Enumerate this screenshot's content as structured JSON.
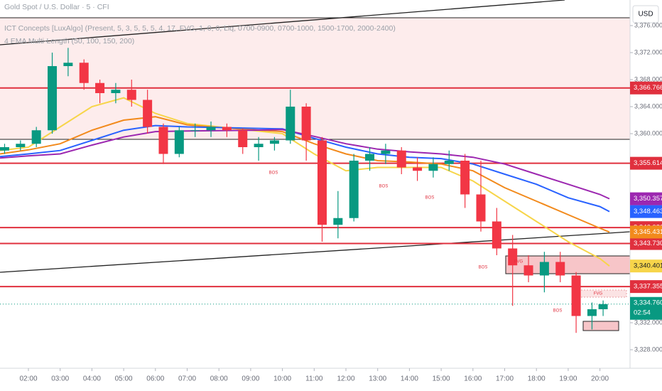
{
  "chart_data": {
    "type": "candlestick",
    "title": "Gold Spot / U.S. Dollar · 5 · CFI",
    "subtitles": [
      "ICT Concepts [LuxAlgo] (Present, 5, 3, 5, 5, 5, 4, 17, FVG, 1, 0, 0, Liq, 0700-0900, 0700-1000, 1500-1700, 2000-2400)",
      "4 EMA Multi-Length (50, 100, 150, 200)"
    ],
    "currency": "USD",
    "up_color": "#089981",
    "down_color": "#f23645",
    "xlim": [
      1.105,
      20.948
    ],
    "ylim": [
      3325.05,
      3379.79
    ],
    "xticks": [
      {
        "value": 2,
        "label": "02:00"
      },
      {
        "value": 3,
        "label": "03:00"
      },
      {
        "value": 4,
        "label": "04:00"
      },
      {
        "value": 5,
        "label": "05:00"
      },
      {
        "value": 6,
        "label": "06:00"
      },
      {
        "value": 7,
        "label": "07:00"
      },
      {
        "value": 8,
        "label": "08:00"
      },
      {
        "value": 9,
        "label": "09:00"
      },
      {
        "value": 10,
        "label": "10:00"
      },
      {
        "value": 11,
        "label": "11:00"
      },
      {
        "value": 12,
        "label": "12:00"
      },
      {
        "value": 13,
        "label": "13:00"
      },
      {
        "value": 14,
        "label": "14:00"
      },
      {
        "value": 15,
        "label": "15:00"
      },
      {
        "value": 16,
        "label": "16:00"
      },
      {
        "value": 17,
        "label": "17:00"
      },
      {
        "value": 18,
        "label": "18:00"
      },
      {
        "value": 19,
        "label": "19:00"
      },
      {
        "value": 20,
        "label": "20:00"
      }
    ],
    "yticks": [
      {
        "value": 3376,
        "label": "3,376.000"
      },
      {
        "value": 3372,
        "label": "3,372.000"
      },
      {
        "value": 3368,
        "label": "3,368.000"
      },
      {
        "value": 3364,
        "label": "3,364.000"
      },
      {
        "value": 3360,
        "label": "3,360.000"
      },
      {
        "value": 3332,
        "label": "3,332.000"
      },
      {
        "value": 3328,
        "label": "3,328.000"
      }
    ],
    "candles": {
      "x": [
        1.25,
        1.75,
        2.25,
        2.75,
        3.25,
        3.75,
        4.25,
        4.75,
        5.25,
        5.75,
        6.25,
        6.75,
        7.25,
        7.75,
        8.25,
        8.75,
        9.25,
        9.75,
        10.25,
        10.75,
        11.25,
        11.75,
        12.25,
        12.75,
        13.25,
        13.75,
        14.25,
        14.75,
        15.25,
        15.75,
        16.25,
        16.75,
        17.25,
        17.75,
        18.25,
        18.75,
        19.25,
        19.75,
        20.1
      ],
      "open": [
        3357.5,
        3358,
        3358.5,
        3360.5,
        3370,
        3370.5,
        3367.5,
        3366,
        3366.5,
        3365,
        3361,
        3357,
        3360.5,
        3360.5,
        3361,
        3360.5,
        3358,
        3358.5,
        3359,
        3364,
        3359,
        3346.5,
        3347.5,
        3356,
        3357,
        3357.5,
        3355,
        3354.5,
        3355.5,
        3356,
        3351,
        3347,
        3343,
        3340.5,
        3339,
        3341,
        3339,
        3333,
        3334
      ],
      "high": [
        3358.5,
        3359,
        3361,
        3372,
        3372.7,
        3371,
        3368,
        3367.5,
        3368,
        3366.5,
        3361.5,
        3361,
        3361.5,
        3361.8,
        3361.5,
        3360.8,
        3359.5,
        3359.5,
        3366.5,
        3364.5,
        3359.5,
        3351.5,
        3357,
        3358,
        3358.5,
        3358,
        3356.5,
        3356.5,
        3357.5,
        3357,
        3356,
        3349,
        3345,
        3342,
        3342.5,
        3342.5,
        3339.5,
        3335,
        3335.3
      ],
      "low": [
        3357,
        3357.5,
        3358,
        3360,
        3368.5,
        3366.5,
        3364.5,
        3364.5,
        3364,
        3360,
        3355.5,
        3356.5,
        3359.5,
        3359.5,
        3359.5,
        3357,
        3356,
        3357.5,
        3358.5,
        3356,
        3344,
        3344.5,
        3347,
        3354.5,
        3355.5,
        3354,
        3353,
        3353.5,
        3354.5,
        3349,
        3345.5,
        3342,
        3334.5,
        3338,
        3336.5,
        3338,
        3330.5,
        3331,
        3333
      ],
      "close": [
        3358,
        3358.5,
        3360.5,
        3370,
        3370.5,
        3367.5,
        3366,
        3366.5,
        3365,
        3361,
        3357,
        3360.5,
        3360.5,
        3361,
        3360.5,
        3358,
        3358.5,
        3359,
        3364,
        3359,
        3346.5,
        3347.5,
        3356,
        3357,
        3357.5,
        3355,
        3354.5,
        3355.5,
        3356,
        3351,
        3347,
        3343,
        3340.5,
        3339,
        3341,
        3339,
        3333,
        3334,
        3334.76
      ]
    },
    "emas": [
      {
        "color": "#f7d54a",
        "x": [
          1.105,
          2,
          3,
          4,
          5,
          6,
          7,
          8,
          9,
          10,
          11,
          12,
          13,
          14,
          15,
          16,
          17,
          18,
          19,
          20,
          20.3
        ],
        "values": [
          3357.5,
          3358,
          3361,
          3364,
          3365.3,
          3363,
          3361.5,
          3361,
          3360.5,
          3360,
          3357,
          3354.5,
          3355,
          3355,
          3355,
          3353,
          3350,
          3347,
          3344,
          3341.5,
          3340.401
        ],
        "last_label": "3,340.401"
      },
      {
        "color": "#f28a1c",
        "x": [
          1.105,
          2,
          3,
          4,
          5,
          6,
          7,
          8,
          9,
          10,
          11,
          12,
          13,
          14,
          15,
          16,
          17,
          18,
          19,
          20,
          20.3
        ],
        "values": [
          3357,
          3357.6,
          3358.5,
          3360.5,
          3362,
          3362.5,
          3361.3,
          3360.9,
          3360.6,
          3360.3,
          3358.5,
          3357,
          3356,
          3355.8,
          3355.5,
          3354.5,
          3352,
          3350,
          3348,
          3346,
          3345.431
        ],
        "last_label": "3,345.431"
      },
      {
        "color": "#2962ff",
        "x": [
          1.105,
          2,
          3,
          4,
          5,
          6,
          7,
          8,
          9,
          10,
          11,
          12,
          13,
          14,
          15,
          16,
          17,
          18,
          19,
          20,
          20.3
        ],
        "values": [
          3356.6,
          3357,
          3357.5,
          3359,
          3360.5,
          3361.2,
          3361,
          3360.9,
          3360.8,
          3360.7,
          3359.3,
          3358,
          3357,
          3356.5,
          3356.3,
          3355.5,
          3354,
          3352.5,
          3350.5,
          3349.2,
          3348.463
        ],
        "last_label": "3,348.463"
      },
      {
        "color": "#9c27b0",
        "x": [
          1.105,
          2,
          3,
          4,
          5,
          6,
          7,
          8,
          9,
          10,
          11,
          12,
          13,
          14,
          15,
          16,
          17,
          18,
          19,
          20,
          20.3
        ],
        "values": [
          3356.4,
          3356.7,
          3357,
          3358.3,
          3359.5,
          3360.3,
          3360.4,
          3360.45,
          3360.5,
          3360.6,
          3359.6,
          3358.5,
          3357.7,
          3357.3,
          3357,
          3356.5,
          3355.5,
          3354,
          3352.5,
          3351,
          3350.357
        ],
        "last_label": "3,350.357"
      }
    ],
    "levels": [
      {
        "value": 3366.766,
        "label": "3,366.766",
        "color": "#e0303e"
      },
      {
        "value": 3355.614,
        "label": "3,355.614",
        "color": "#e0303e"
      },
      {
        "value": 3346.086,
        "label": "3,346.086",
        "color": "#e0303e"
      },
      {
        "value": 3343.73,
        "label": "3,343.730",
        "color": "#e0303e"
      },
      {
        "value": 3337.355,
        "label": "3,337.355",
        "color": "#e0303e"
      }
    ],
    "last_price": {
      "value": 3334.76,
      "label": "3,334.760",
      "countdown": "02:54",
      "color": "#089981"
    },
    "annotations": [
      "BOS",
      "BOS",
      "BOS",
      "BOS",
      "BOS",
      "FVG",
      "FVG"
    ]
  }
}
